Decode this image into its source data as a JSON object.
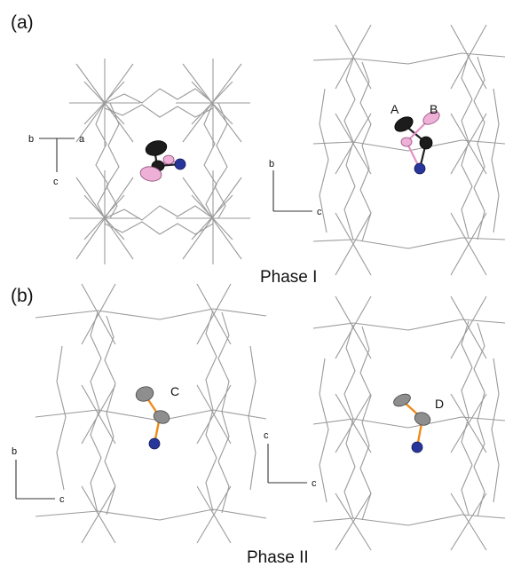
{
  "panels": {
    "a": {
      "label": "(a)"
    },
    "b": {
      "label": "(b)"
    }
  },
  "phases": {
    "phase1": "Phase I",
    "phase2": "Phase II"
  },
  "atom_labels": {
    "A": "A",
    "B": "B",
    "C": "C",
    "D": "D"
  },
  "axes": {
    "top_left": {
      "left": "b",
      "right": "a",
      "down": "c"
    },
    "top_right": {
      "up": "b",
      "right": "c"
    },
    "bottom_left": {
      "up": "b",
      "right": "c"
    },
    "bottom_right": {
      "up": "c",
      "right": "c"
    }
  },
  "colors": {
    "framework": "#9a9a9a",
    "atom_black": "#1c1c1c",
    "atom_pink": "#efb0d8",
    "atom_gray": "#8e8e8e",
    "atom_blue": "#28359a",
    "bond_orange": "#f08a1c"
  }
}
